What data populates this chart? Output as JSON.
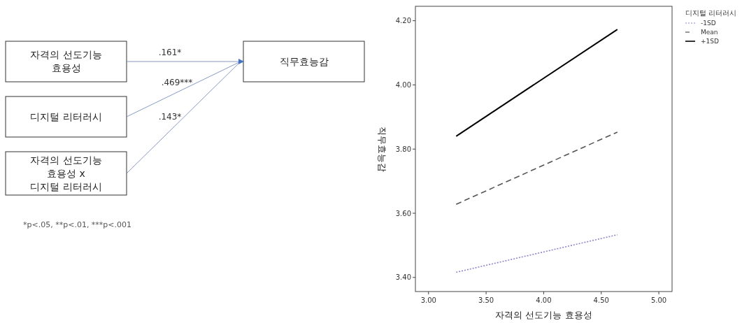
{
  "chart_data": [
    {
      "type": "other",
      "annotations": [
        "자격의 선도기능\n효용성",
        "디지털 리터러시",
        "자격의 선도기능\n효용성 x\n디지털 리터러시",
        "직무효능감",
        ".161*",
        ".469***",
        ".143*",
        "*p<.05, **p<.01, ***p<.001"
      ]
    },
    {
      "type": "line",
      "xlabel": "자격의 선도기능 효용성",
      "ylabel": "직무효능감",
      "legend_title": "디지털 리터러시",
      "legend": "top right",
      "xlim": [
        2.886,
        5.115
      ],
      "ylim": [
        3.356,
        4.245
      ],
      "xticks": [
        {
          "value": 3,
          "label": "3.00"
        },
        {
          "value": 3.5,
          "label": "3.50"
        },
        {
          "value": 4,
          "label": "4.00"
        },
        {
          "value": 4.5,
          "label": "4.50"
        },
        {
          "value": 5,
          "label": "5.00"
        }
      ],
      "yticks": [
        {
          "value": 3.4,
          "label": "3.40"
        },
        {
          "value": 3.6,
          "label": "3.60"
        },
        {
          "value": 3.8,
          "label": "3.80"
        },
        {
          "value": 4,
          "label": "4.00"
        },
        {
          "value": 4.2,
          "label": "4.20"
        }
      ],
      "x": [
        3.24,
        4.64
      ],
      "series": [
        {
          "name": "-1SD",
          "color": "#8a86c8",
          "line_style": "dotted",
          "values": [
            3.416,
            3.533
          ]
        },
        {
          "name": "Mean",
          "color": "#555555",
          "line_style": "dashed",
          "values": [
            3.628,
            3.853
          ]
        },
        {
          "name": "+1SD",
          "color": "#000000",
          "line_style": "solid",
          "values": [
            3.84,
            4.173
          ]
        }
      ]
    }
  ]
}
